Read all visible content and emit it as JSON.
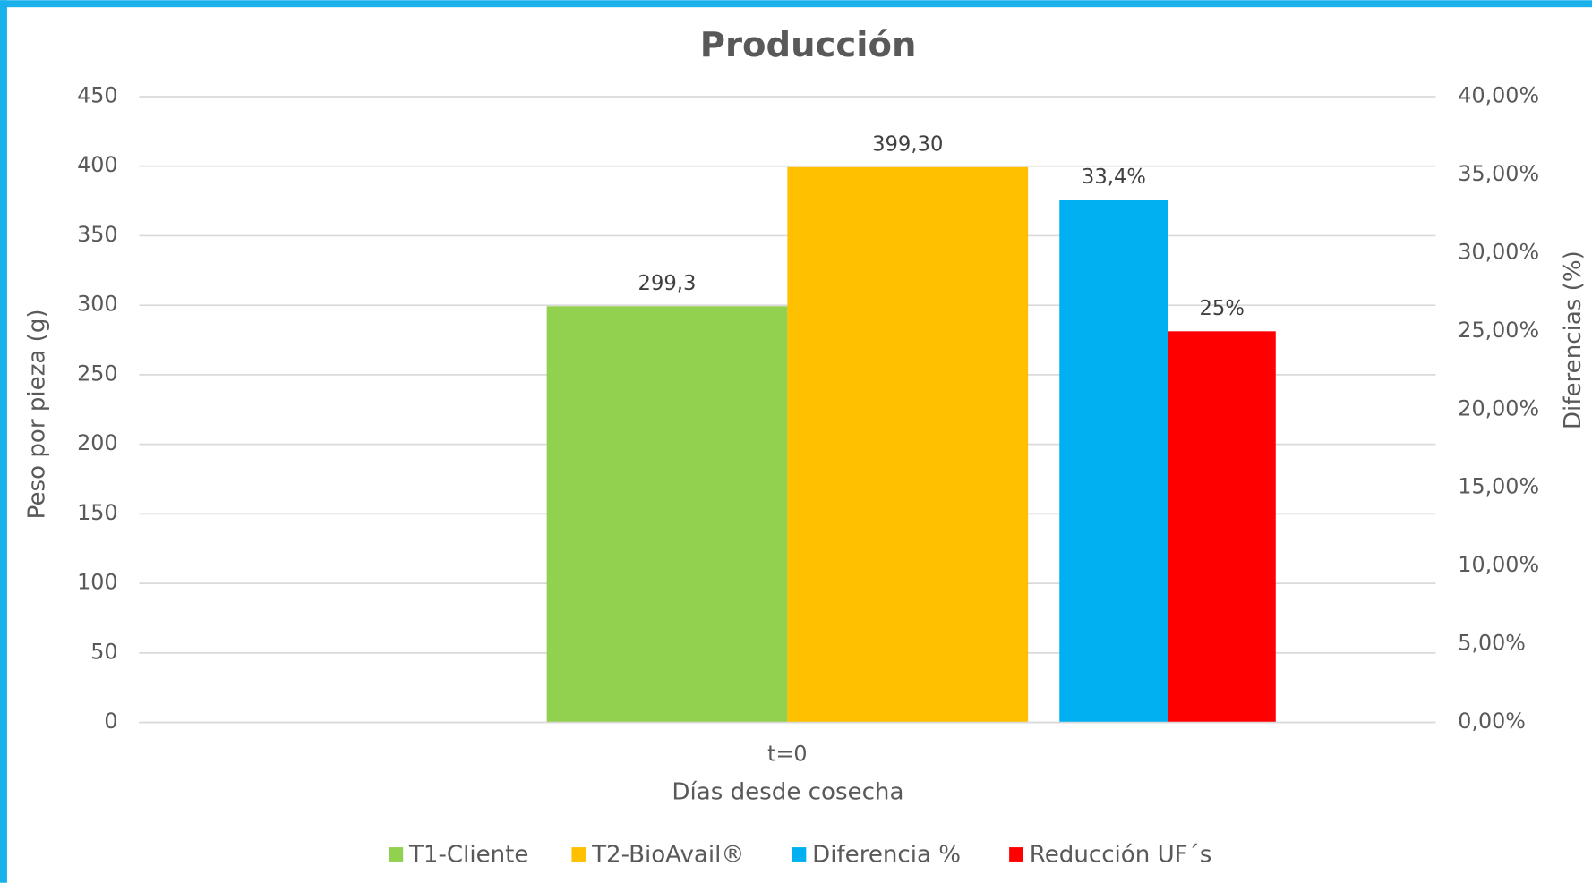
{
  "chart_data": {
    "type": "bar",
    "title": "Producción",
    "x_label": "Días desde cosecha",
    "y_label": "Peso por pieza (g)",
    "y2_label": "Diferencias (%)",
    "categories": [
      "t=0"
    ],
    "series": [
      {
        "name": "T1-Cliente",
        "color": "#92d050",
        "values": [
          299.3
        ],
        "value_labels": [
          "299,3"
        ]
      },
      {
        "name": "T2-BioAvail®",
        "color": "#ffc000",
        "values": [
          399.3
        ],
        "value_labels": [
          "399,30"
        ]
      },
      {
        "name": "Diferencia %",
        "color": "#00b0f0",
        "axis": "y2",
        "values": [
          33.4
        ],
        "value_labels": [
          "33,4%"
        ]
      },
      {
        "name": "Reducción UF´s",
        "color": "#ff0000",
        "axis": "y2",
        "values": [
          25
        ],
        "value_labels": [
          "25%"
        ]
      }
    ],
    "ylim": [
      0,
      450
    ],
    "yticks": [
      0,
      50,
      100,
      150,
      200,
      250,
      300,
      350,
      400,
      450
    ],
    "y2lim": [
      0,
      40
    ],
    "y2ticks": [
      {
        "value": 0,
        "label": "0,00%"
      },
      {
        "value": 5,
        "label": "5,00%"
      },
      {
        "value": 10,
        "label": "10,00%"
      },
      {
        "value": 15,
        "label": "15,00%"
      },
      {
        "value": 20,
        "label": "20,00%"
      },
      {
        "value": 25,
        "label": "25,00%"
      },
      {
        "value": 30,
        "label": "30,00%"
      },
      {
        "value": 35,
        "label": "35,00%"
      },
      {
        "value": 40,
        "label": "40,00%"
      }
    ],
    "grid": true,
    "legend": "bottom"
  }
}
